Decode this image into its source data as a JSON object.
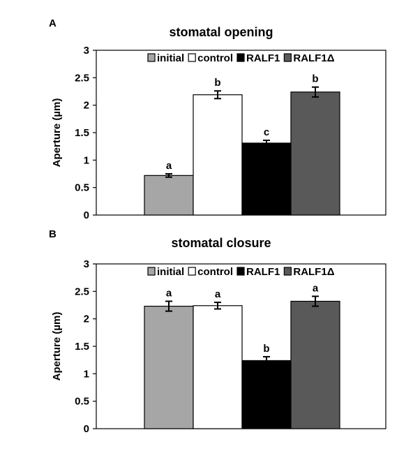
{
  "colors": {
    "initial": "#a6a6a6",
    "control": "#ffffff",
    "RALF1": "#000000",
    "RALF1Δ": "#595959",
    "axis": "#000000"
  },
  "chart_data": [
    {
      "type": "bar",
      "panel_label": "A",
      "title": "stomatal opening",
      "ylabel": "Aperture (µm)",
      "xlabel": "",
      "ylim": [
        0,
        3
      ],
      "yticks": [
        "0",
        "0.5",
        "1",
        "1.5",
        "2",
        "2.5",
        "3"
      ],
      "grid": false,
      "legend_position": "top-right",
      "series": [
        {
          "name": "initial",
          "value": 0.72,
          "error": 0.03,
          "letter": "a",
          "color_key": "initial"
        },
        {
          "name": "control",
          "value": 2.19,
          "error": 0.07,
          "letter": "b",
          "color_key": "control"
        },
        {
          "name": "RALF1",
          "value": 1.31,
          "error": 0.05,
          "letter": "c",
          "color_key": "RALF1"
        },
        {
          "name": "RALF1Δ",
          "value": 2.24,
          "error": 0.09,
          "letter": "b",
          "color_key": "RALF1Δ"
        }
      ]
    },
    {
      "type": "bar",
      "panel_label": "B",
      "title": "stomatal closure",
      "ylabel": "Aperture (µm)",
      "xlabel": "",
      "ylim": [
        0,
        3
      ],
      "yticks": [
        "0",
        "0.5",
        "1",
        "1.5",
        "2",
        "2.5",
        "3"
      ],
      "grid": false,
      "legend_position": "top-right",
      "series": [
        {
          "name": "initial",
          "value": 2.23,
          "error": 0.09,
          "letter": "a",
          "color_key": "initial"
        },
        {
          "name": "control",
          "value": 2.24,
          "error": 0.06,
          "letter": "a",
          "color_key": "control"
        },
        {
          "name": "RALF1",
          "value": 1.24,
          "error": 0.07,
          "letter": "b",
          "color_key": "RALF1"
        },
        {
          "name": "RALF1Δ",
          "value": 2.32,
          "error": 0.09,
          "letter": "a",
          "color_key": "RALF1Δ"
        }
      ]
    }
  ]
}
